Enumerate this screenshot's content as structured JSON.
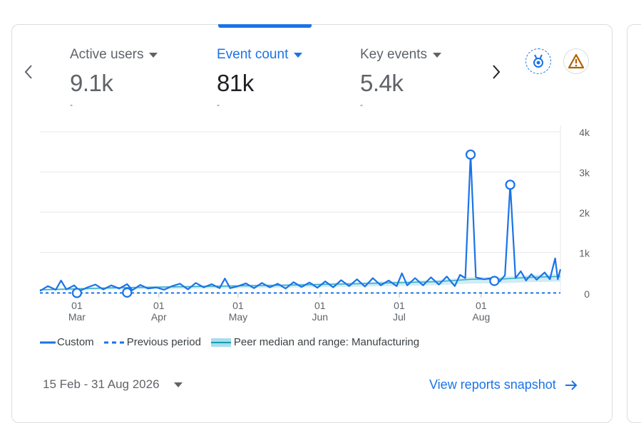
{
  "metrics": [
    {
      "label": "Active users",
      "value": "9.1k",
      "change": "-"
    },
    {
      "label": "Event count",
      "value": "81k",
      "change": "-"
    },
    {
      "label": "Key events",
      "value": "5.4k",
      "change": "-"
    }
  ],
  "icons": {
    "prev": "chevron-left-icon",
    "next": "chevron-right-icon",
    "insights": "medal-icon",
    "warning": "warning-icon"
  },
  "colors": {
    "primary": "#1a73e8",
    "peer": "#a8dcec",
    "warning": "#b06000"
  },
  "legend": {
    "custom": "Custom",
    "previous": "Previous period",
    "peer": "Peer median and range: Manufacturing"
  },
  "footer": {
    "date_range": "15 Feb - 31 Aug 2026",
    "snapshot_link": "View reports snapshot"
  },
  "chart_data": {
    "type": "line",
    "x_start": "2026-02-15",
    "x_end": "2026-08-31",
    "ylim": [
      0,
      4000
    ],
    "y_ticks": [
      "4k",
      "3k",
      "2k",
      "1k",
      "0"
    ],
    "x_ticks": [
      {
        "day": "01",
        "month": "Mar",
        "date": "2026-03-01"
      },
      {
        "day": "01",
        "month": "Apr",
        "date": "2026-04-01"
      },
      {
        "day": "01",
        "month": "May",
        "date": "2026-05-01"
      },
      {
        "day": "01",
        "month": "Jun",
        "date": "2026-06-01"
      },
      {
        "day": "01",
        "month": "Jul",
        "date": "2026-07-01"
      },
      {
        "day": "01",
        "month": "Aug",
        "date": "2026-08-01"
      }
    ],
    "series": [
      {
        "name": "Custom",
        "style": "solid",
        "points": [
          [
            "2026-02-15",
            60
          ],
          [
            "2026-02-18",
            180
          ],
          [
            "2026-02-21",
            90
          ],
          [
            "2026-02-23",
            320
          ],
          [
            "2026-02-25",
            100
          ],
          [
            "2026-02-28",
            200
          ],
          [
            "2026-03-02",
            60
          ],
          [
            "2026-03-05",
            150
          ],
          [
            "2026-03-08",
            220
          ],
          [
            "2026-03-11",
            100
          ],
          [
            "2026-03-14",
            200
          ],
          [
            "2026-03-17",
            120
          ],
          [
            "2026-03-20",
            230
          ],
          [
            "2026-03-22",
            80
          ],
          [
            "2026-03-25",
            210
          ],
          [
            "2026-03-28",
            120
          ],
          [
            "2026-03-31",
            150
          ],
          [
            "2026-04-03",
            90
          ],
          [
            "2026-04-06",
            180
          ],
          [
            "2026-04-09",
            240
          ],
          [
            "2026-04-12",
            100
          ],
          [
            "2026-04-15",
            260
          ],
          [
            "2026-04-18",
            150
          ],
          [
            "2026-04-21",
            230
          ],
          [
            "2026-04-24",
            130
          ],
          [
            "2026-04-26",
            370
          ],
          [
            "2026-04-28",
            130
          ],
          [
            "2026-05-01",
            180
          ],
          [
            "2026-05-04",
            250
          ],
          [
            "2026-05-07",
            130
          ],
          [
            "2026-05-10",
            260
          ],
          [
            "2026-05-13",
            150
          ],
          [
            "2026-05-16",
            240
          ],
          [
            "2026-05-19",
            120
          ],
          [
            "2026-05-22",
            280
          ],
          [
            "2026-05-25",
            160
          ],
          [
            "2026-05-28",
            270
          ],
          [
            "2026-05-31",
            140
          ],
          [
            "2026-06-03",
            300
          ],
          [
            "2026-06-06",
            150
          ],
          [
            "2026-06-09",
            330
          ],
          [
            "2026-06-12",
            180
          ],
          [
            "2026-06-15",
            350
          ],
          [
            "2026-06-18",
            170
          ],
          [
            "2026-06-21",
            380
          ],
          [
            "2026-06-24",
            200
          ],
          [
            "2026-06-27",
            320
          ],
          [
            "2026-06-30",
            180
          ],
          [
            "2026-07-02",
            500
          ],
          [
            "2026-07-04",
            200
          ],
          [
            "2026-07-07",
            380
          ],
          [
            "2026-07-10",
            200
          ],
          [
            "2026-07-13",
            400
          ],
          [
            "2026-07-16",
            220
          ],
          [
            "2026-07-19",
            420
          ],
          [
            "2026-07-22",
            180
          ],
          [
            "2026-07-24",
            460
          ],
          [
            "2026-07-26",
            380
          ],
          [
            "2026-07-28",
            3450
          ],
          [
            "2026-07-30",
            400
          ],
          [
            "2026-08-02",
            350
          ],
          [
            "2026-08-05",
            380
          ],
          [
            "2026-08-08",
            300
          ],
          [
            "2026-08-10",
            450
          ],
          [
            "2026-08-12",
            2700
          ],
          [
            "2026-08-14",
            380
          ],
          [
            "2026-08-16",
            550
          ],
          [
            "2026-08-18",
            320
          ],
          [
            "2026-08-20",
            480
          ],
          [
            "2026-08-22",
            340
          ],
          [
            "2026-08-25",
            520
          ],
          [
            "2026-08-27",
            350
          ],
          [
            "2026-08-29",
            870
          ],
          [
            "2026-08-30",
            350
          ],
          [
            "2026-08-31",
            600
          ]
        ],
        "markers": [
          [
            "2026-03-01",
            10
          ],
          [
            "2026-03-20",
            20
          ],
          [
            "2026-07-28",
            3450
          ],
          [
            "2026-08-06",
            310
          ],
          [
            "2026-08-12",
            2700
          ]
        ]
      },
      {
        "name": "Previous period",
        "style": "dashed",
        "points": [
          [
            "2026-02-15",
            10
          ],
          [
            "2026-08-31",
            10
          ]
        ]
      },
      {
        "name": "Peer median and range: Manufacturing",
        "style": "band",
        "points": [
          [
            "2026-02-15",
            90
          ],
          [
            "2026-03-15",
            140
          ],
          [
            "2026-04-15",
            170
          ],
          [
            "2026-05-15",
            200
          ],
          [
            "2026-06-15",
            240
          ],
          [
            "2026-07-15",
            290
          ],
          [
            "2026-07-28",
            350
          ],
          [
            "2026-08-10",
            360
          ],
          [
            "2026-08-20",
            400
          ],
          [
            "2026-08-31",
            420
          ]
        ]
      }
    ]
  }
}
